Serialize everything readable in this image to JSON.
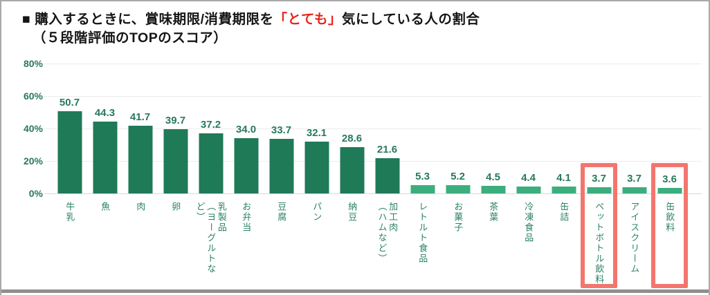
{
  "title": {
    "line1_pre": "■ 購入するときに、賞味期限/消費期限を",
    "line1_highlight": "「とても」",
    "line1_post": "気にしている人の割合",
    "line2": "（５段階評価のTOPのスコア）",
    "highlight_color": "#e8231a"
  },
  "colors": {
    "bar_dark_green": "#1f7a58",
    "bar_light_green": "#3cae7e",
    "value_label_green": "#27795b",
    "axis_label_green": "#27795b",
    "category_label_green": "#2b8263",
    "highlight_box_red": "#f3766d",
    "gridline_gray": "#ececec",
    "frame_gray": "#a8a8a8"
  },
  "chart_data": {
    "type": "bar",
    "title": "購入するときに、賞味期限/消費期限を「とても」気にしている人の割合（５段階評価のTOPのスコア）",
    "categories": [
      "牛乳",
      "魚",
      "肉",
      "卵",
      "乳製品（ヨーグルトなど）",
      "お弁当",
      "豆腐",
      "パン",
      "納豆",
      "加工肉（ハムなど）",
      "レトルト食品",
      "お菓子",
      "茶葉",
      "冷凍食品",
      "缶詰",
      "ペットボトル飲料",
      "アイスクリーム",
      "缶飲料"
    ],
    "display_labels": [
      "牛乳",
      "魚",
      "肉",
      "卵",
      "乳製品\n（ヨーグルトなど）",
      "お弁当",
      "豆腐",
      "パン",
      "納豆",
      "加工肉\n（ハムなど）",
      "レトルト食品",
      "お菓子",
      "茶葉",
      "冷凍食品",
      "缶詰",
      "ペットボトル飲料",
      "アイスクリーム",
      "缶飲料"
    ],
    "values": [
      50.7,
      44.3,
      41.7,
      39.7,
      37.2,
      34.0,
      33.7,
      32.1,
      28.6,
      21.6,
      5.3,
      5.2,
      4.5,
      4.4,
      4.1,
      3.7,
      3.7,
      3.6
    ],
    "value_labels": [
      "50.7",
      "44.3",
      "41.7",
      "39.7",
      "37.2",
      "34.0",
      "33.7",
      "32.1",
      "28.6",
      "21.6",
      "5.3",
      "5.2",
      "4.5",
      "4.4",
      "4.1",
      "3.7",
      "3.7",
      "3.6"
    ],
    "dark_color_count": 10,
    "highlighted_indices": [
      15,
      17
    ],
    "yticks": [
      "0%",
      "20%",
      "40%",
      "60%",
      "80%"
    ],
    "ytick_values": [
      0,
      20,
      40,
      60,
      80
    ],
    "ylim": [
      0,
      80
    ],
    "xlabel": "",
    "ylabel": "",
    "grid": true,
    "legend": null
  }
}
